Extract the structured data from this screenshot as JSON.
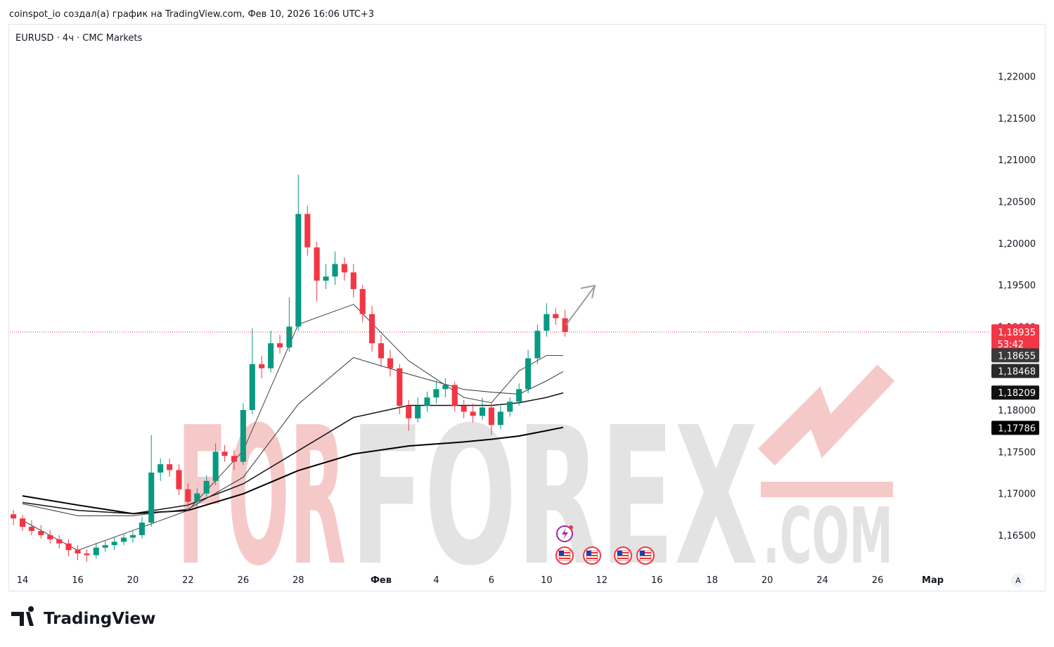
{
  "header": {
    "caption": "coinspot_io создал(а) график на TradingView.com, Фев 10, 2026 16:06 UTC+3",
    "logo": "TradingView"
  },
  "chart_data": {
    "type": "candlestick",
    "title": "EURUSD · 4ч · CMC Markets",
    "up_color": "#089981",
    "down_color": "#f23645",
    "xlim": [
      -0.46,
      35
    ],
    "ylim": [
      1.1612,
      1.2262
    ],
    "grid": false,
    "xticks": [
      {
        "value": 0,
        "label": "14"
      },
      {
        "value": 2,
        "label": "16"
      },
      {
        "value": 4,
        "label": "20"
      },
      {
        "value": 6,
        "label": "22"
      },
      {
        "value": 8,
        "label": "26"
      },
      {
        "value": 10,
        "label": "28"
      },
      {
        "value": 13,
        "label": "Фев"
      },
      {
        "value": 15,
        "label": "4"
      },
      {
        "value": 17,
        "label": "6"
      },
      {
        "value": 19,
        "label": "10"
      },
      {
        "value": 21,
        "label": "12"
      },
      {
        "value": 23,
        "label": "16"
      },
      {
        "value": 25,
        "label": "18"
      },
      {
        "value": 27,
        "label": "20"
      },
      {
        "value": 29,
        "label": "24"
      },
      {
        "value": 31,
        "label": "26"
      },
      {
        "value": 33,
        "label": "Мар"
      }
    ],
    "yticks": [
      {
        "value": 1.165,
        "label": "1,16500"
      },
      {
        "value": 1.17,
        "label": "1,17000"
      },
      {
        "value": 1.175,
        "label": "1,17500"
      },
      {
        "value": 1.18,
        "label": "1,18000"
      },
      {
        "value": 1.185,
        "label": "1,18500"
      },
      {
        "value": 1.19,
        "label": "1,19000"
      },
      {
        "value": 1.195,
        "label": "1,19500"
      },
      {
        "value": 1.2,
        "label": "1,20000"
      },
      {
        "value": 1.205,
        "label": "1,20500"
      },
      {
        "value": 1.21,
        "label": "1,21000"
      },
      {
        "value": 1.215,
        "label": "1,21500"
      },
      {
        "value": 1.22,
        "label": "1,22000"
      }
    ],
    "x": [
      -0.33,
      0,
      0.33,
      0.67,
      1,
      1.33,
      1.67,
      2,
      2.33,
      2.67,
      3,
      3.33,
      3.67,
      4,
      4.33,
      4.67,
      5,
      5.33,
      5.67,
      6,
      6.33,
      6.67,
      7,
      7.33,
      7.67,
      8,
      8.33,
      8.67,
      9,
      9.33,
      9.67,
      10,
      10.33,
      10.67,
      11,
      11.33,
      11.67,
      12,
      12.33,
      12.67,
      13,
      13.33,
      13.67,
      14,
      14.33,
      14.67,
      15,
      15.33,
      15.67,
      16,
      16.33,
      16.67,
      17,
      17.33,
      17.67,
      18,
      18.33,
      18.67,
      19,
      19.33,
      19.67
    ],
    "ohlc": [
      [
        1.1675,
        1.168,
        1.1662,
        1.167
      ],
      [
        1.167,
        1.1674,
        1.1655,
        1.166
      ],
      [
        1.166,
        1.1668,
        1.165,
        1.1655
      ],
      [
        1.1655,
        1.1662,
        1.1646,
        1.165
      ],
      [
        1.165,
        1.1656,
        1.164,
        1.1645
      ],
      [
        1.1645,
        1.165,
        1.1634,
        1.164
      ],
      [
        1.164,
        1.1645,
        1.1625,
        1.1632
      ],
      [
        1.1632,
        1.1638,
        1.162,
        1.1628
      ],
      [
        1.1628,
        1.1633,
        1.1618,
        1.1626
      ],
      [
        1.1626,
        1.1641,
        1.1622,
        1.1635
      ],
      [
        1.1635,
        1.1644,
        1.163,
        1.1638
      ],
      [
        1.1638,
        1.1648,
        1.1632,
        1.1642
      ],
      [
        1.1642,
        1.1652,
        1.1638,
        1.1647
      ],
      [
        1.1647,
        1.1656,
        1.1641,
        1.165
      ],
      [
        1.165,
        1.1672,
        1.1646,
        1.1665
      ],
      [
        1.1665,
        1.177,
        1.166,
        1.1725
      ],
      [
        1.1725,
        1.1742,
        1.1715,
        1.1735
      ],
      [
        1.1735,
        1.1742,
        1.172,
        1.1728
      ],
      [
        1.1728,
        1.1735,
        1.1698,
        1.1705
      ],
      [
        1.1705,
        1.1712,
        1.1683,
        1.169
      ],
      [
        1.169,
        1.1706,
        1.1684,
        1.17
      ],
      [
        1.17,
        1.1722,
        1.1696,
        1.1715
      ],
      [
        1.1715,
        1.176,
        1.171,
        1.175
      ],
      [
        1.175,
        1.1758,
        1.1738,
        1.1745
      ],
      [
        1.1745,
        1.1752,
        1.1728,
        1.1738
      ],
      [
        1.1738,
        1.1808,
        1.1734,
        1.18
      ],
      [
        1.18,
        1.1898,
        1.1795,
        1.1855
      ],
      [
        1.1855,
        1.1865,
        1.1838,
        1.185
      ],
      [
        1.185,
        1.1895,
        1.1845,
        1.188
      ],
      [
        1.188,
        1.189,
        1.1868,
        1.1875
      ],
      [
        1.1875,
        1.1935,
        1.187,
        1.19
      ],
      [
        1.19,
        1.2082,
        1.1895,
        1.2035
      ],
      [
        1.2035,
        1.2045,
        1.1985,
        1.1995
      ],
      [
        1.1995,
        1.2002,
        1.193,
        1.1955
      ],
      [
        1.1955,
        1.1975,
        1.1945,
        1.196
      ],
      [
        1.196,
        1.199,
        1.195,
        1.1975
      ],
      [
        1.1975,
        1.1983,
        1.1955,
        1.1965
      ],
      [
        1.1965,
        1.1975,
        1.1935,
        1.1945
      ],
      [
        1.1945,
        1.195,
        1.1905,
        1.1915
      ],
      [
        1.1915,
        1.1925,
        1.187,
        1.188
      ],
      [
        1.188,
        1.189,
        1.1852,
        1.1862
      ],
      [
        1.1862,
        1.1872,
        1.184,
        1.185
      ],
      [
        1.185,
        1.1855,
        1.1795,
        1.1805
      ],
      [
        1.1805,
        1.1812,
        1.1775,
        1.179
      ],
      [
        1.179,
        1.1815,
        1.1785,
        1.1805
      ],
      [
        1.1805,
        1.1822,
        1.1798,
        1.1815
      ],
      [
        1.1815,
        1.1835,
        1.1808,
        1.1825
      ],
      [
        1.1825,
        1.1838,
        1.1815,
        1.183
      ],
      [
        1.183,
        1.1834,
        1.1798,
        1.1805
      ],
      [
        1.1805,
        1.1812,
        1.179,
        1.1798
      ],
      [
        1.1798,
        1.1808,
        1.1785,
        1.1793
      ],
      [
        1.1793,
        1.1815,
        1.1788,
        1.1803
      ],
      [
        1.1803,
        1.1808,
        1.177,
        1.1782
      ],
      [
        1.1782,
        1.1805,
        1.1777,
        1.1798
      ],
      [
        1.1798,
        1.1815,
        1.1792,
        1.181
      ],
      [
        1.181,
        1.1832,
        1.1805,
        1.1825
      ],
      [
        1.1825,
        1.1872,
        1.182,
        1.1862
      ],
      [
        1.1862,
        1.1902,
        1.1855,
        1.1895
      ],
      [
        1.1895,
        1.1928,
        1.1888,
        1.1915
      ],
      [
        1.1915,
        1.1922,
        1.1902,
        1.191
      ],
      [
        1.191,
        1.192,
        1.1888,
        1.18935
      ]
    ],
    "ma_x": [
      0,
      2,
      4,
      6,
      8,
      10,
      12,
      14,
      16,
      17,
      18,
      19,
      19.6
    ],
    "lines": [
      {
        "color": "#000000",
        "width": 2,
        "values": [
          1.16971,
          1.1686,
          1.16757,
          1.16796,
          1.16995,
          1.17274,
          1.17473,
          1.17569,
          1.17617,
          1.17649,
          1.17688,
          1.17752,
          1.17792
        ]
      },
      {
        "color": "#111111",
        "width": 1.5,
        "values": [
          1.16891,
          1.16796,
          1.16757,
          1.1686,
          1.17115,
          1.17513,
          1.17911,
          1.18055,
          1.18055,
          1.18055,
          1.18087,
          1.18151,
          1.18206
        ]
      },
      {
        "color": "#333333",
        "width": 1,
        "values": [
          1.16875,
          1.16732,
          1.16732,
          1.16812,
          1.17194,
          1.18071,
          1.18629,
          1.1843,
          1.18246,
          1.18214,
          1.1819,
          1.1835,
          1.18461
        ]
      },
      {
        "color": "#444444",
        "width": 1,
        "values": [
          1.16676,
          1.16317,
          1.16556,
          1.16796,
          1.17513,
          1.19027,
          1.19266,
          1.18589,
          1.18151,
          1.18087,
          1.18469,
          1.18653,
          1.18653
        ]
      }
    ],
    "price_labels": [
      {
        "value": 1.18935,
        "label": "1,18935",
        "color": "#f23645",
        "countdown": "53:42"
      },
      {
        "value": 1.18655,
        "label": "1,18655",
        "color": "#3a3a3a"
      },
      {
        "value": 1.18468,
        "label": "1,18468",
        "color": "#2a2a2a"
      },
      {
        "value": 1.18209,
        "label": "1,18209",
        "color": "#111111"
      },
      {
        "value": 1.17786,
        "label": "1,17786",
        "color": "#000000"
      }
    ],
    "watermark": {
      "first": "FOR",
      "second": "FOREX",
      "third": ".COM"
    },
    "scale_button": "A"
  }
}
